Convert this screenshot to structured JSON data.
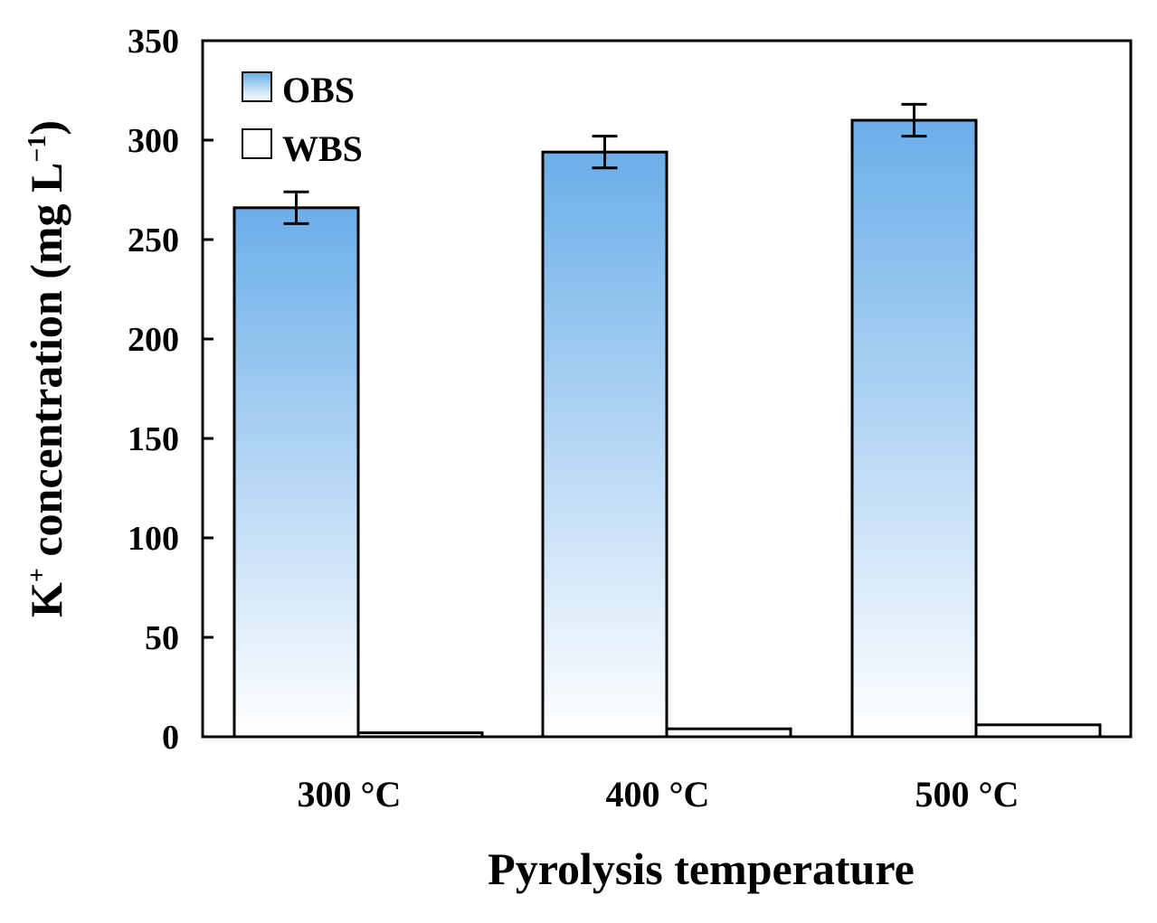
{
  "chart_data": {
    "type": "bar",
    "categories": [
      "300 °C",
      "400 °C",
      "500 °C"
    ],
    "series": [
      {
        "name": "OBS",
        "values": [
          266,
          294,
          310
        ],
        "errors": [
          8,
          8,
          8
        ],
        "fill": "gradient-blue"
      },
      {
        "name": "WBS",
        "values": [
          2,
          4,
          6
        ],
        "fill": "white"
      }
    ],
    "xlabel": "Pyrolysis temperature",
    "ylabel": {
      "prefix": "K",
      "superscript": "+",
      "middle": " concentration (mg L",
      "exponent": "−1",
      "suffix": ")"
    },
    "ylim": [
      0,
      350
    ],
    "yticks": [
      0,
      50,
      100,
      150,
      200,
      250,
      300,
      350
    ],
    "grid": false,
    "legend_position": "top-left"
  },
  "colors": {
    "obs_top": "#6aaee9",
    "obs_bottom": "#ffffff",
    "wbs_fill": "#ffffff",
    "stroke": "#000000"
  }
}
